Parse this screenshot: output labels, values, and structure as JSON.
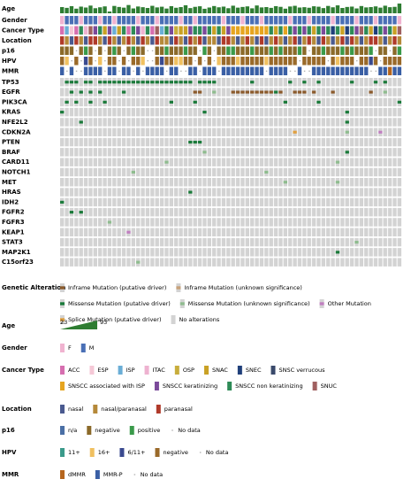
{
  "chart_data": {
    "type": "oncoprint",
    "age": {
      "label": "Age",
      "color": "#2e7d32",
      "range": [
        23,
        93
      ],
      "values": [
        62,
        55,
        70,
        48,
        66,
        58,
        75,
        52,
        60,
        68,
        23,
        72,
        63,
        57,
        80,
        50,
        67,
        61,
        54,
        73,
        59,
        65,
        49,
        70,
        56,
        62,
        78,
        53,
        64,
        69,
        47,
        58,
        71,
        60,
        66,
        52,
        74,
        57,
        63,
        68,
        51,
        76,
        59,
        62,
        55,
        70,
        64,
        48,
        67,
        73,
        58,
        61,
        56,
        69,
        65,
        53,
        72,
        60,
        77,
        54,
        63,
        66,
        50,
        71,
        59,
        62,
        68,
        57,
        74,
        61,
        64,
        93
      ]
    },
    "tracks": [
      {
        "label": "Gender",
        "codes": "FMMMFMMMFMMFMMMMFMMMFMMMMFMMFMMMMMFMMMFMMMFMMMMMFMMMFMMMMFMMMMFMMMFMMMMF",
        "categories": [
          {
            "code": "F",
            "name": "F",
            "color": "#f0b3d0"
          },
          {
            "code": "M",
            "name": "M",
            "color": "#4a6fb5"
          }
        ]
      },
      {
        "label": "Cancer Type",
        "codes": "0210a3b9a5925a0a93a0b2a94559aa9a5a5988888888a5a8a9a9a5a9a6a56a9ba56a9a5b",
        "categories": [
          {
            "code": "0",
            "name": "ACC",
            "color": "#d66fb0"
          },
          {
            "code": "1",
            "name": "ESP",
            "color": "#f5c8d6"
          },
          {
            "code": "2",
            "name": "ISP",
            "color": "#6aaed6"
          },
          {
            "code": "3",
            "name": "ITAC",
            "color": "#eeb2d0"
          },
          {
            "code": "4",
            "name": "OSP",
            "color": "#c8ad3c"
          },
          {
            "code": "5",
            "name": "SNAC",
            "color": "#c9a125"
          },
          {
            "code": "6",
            "name": "SNEC",
            "color": "#1f3f7a"
          },
          {
            "code": "7",
            "name": "SNSC verrucous",
            "color": "#3a4a6b"
          },
          {
            "code": "8",
            "name": "SNSCC associated with ISP",
            "color": "#e6a520"
          },
          {
            "code": "9",
            "name": "SNSCC keratinizing",
            "color": "#7b4a9a"
          },
          {
            "code": "a",
            "name": "SNSCC non keratinizing",
            "color": "#2e8b57"
          },
          {
            "code": "b",
            "name": "SNUC",
            "color": "#a06060"
          }
        ]
      },
      {
        "label": "Location",
        "codes": "210210221021012102102110210212011022101210201210120121021012021012210121",
        "categories": [
          {
            "code": "0",
            "name": "nasal",
            "color": "#4a5a8f"
          },
          {
            "code": "1",
            "name": "nasal/paranasal",
            "color": "#b5893a"
          },
          {
            "code": "2",
            "name": "paranasal",
            "color": "#b03a2a"
          }
        ]
      },
      {
        "label": "p16",
        "codes": "111-121-1-121-1211--112111211-21-1122111211121211121-1121112121112 11-121",
        "categories": [
          {
            "code": "0",
            "name": "n/a",
            "color": "#4a6fa5"
          },
          {
            "code": "1",
            "name": "negative",
            "color": "#8b6a2a"
          },
          {
            "code": "2",
            "name": "positive",
            "color": "#3a9a4a"
          },
          {
            "code": "-",
            "name": "No data",
            "color": "#999999"
          }
        ]
      },
      {
        "label": "HPV",
        "codes": "31-3-23-1-33-3-331--32331133-3-3-13331333331333333-33333-31333-3323-3333",
        "categories": [
          {
            "code": "0",
            "name": "11+",
            "color": "#3a9a8a"
          },
          {
            "code": "1",
            "name": "16+",
            "color": "#f0c060"
          },
          {
            "code": "2",
            "name": "6/11+",
            "color": "#3a4a8f"
          },
          {
            "code": "3",
            "name": "negative",
            "color": "#9a6a2a"
          },
          {
            "code": "-",
            "name": "No data",
            "color": "#999999"
          }
        ]
      },
      {
        "label": "MMR",
        "codes": "1-1--1111-11-11-1-1111-11--11-111-111111111-1111--1--111111111111--11011",
        "categories": [
          {
            "code": "0",
            "name": "dMMR",
            "color": "#b5651d"
          },
          {
            "code": "1",
            "name": "MMR-P",
            "color": "#3a5fa5"
          },
          {
            "code": "-",
            "name": "No data",
            "color": "#999999"
          }
        ]
      }
    ],
    "genes": [
      {
        "name": "TP53",
        "cells": ".mmm.mm.mmmmmmmmmmmmmmmmmmmm.mmmm.......m.......m..m..m......m....m.m..."
      },
      {
        "name": "EGFR",
        "cells": "..m.m.m.m....m..............ii..u...iiiiiiiiimi..iii.i...i.......i..u..."
      },
      {
        "name": "PIK3CA",
        "cells": ".m.m..m..m.............m....m..................m......m................m"
      },
      {
        "name": "KRAS",
        "cells": "m.............................m.............................m..........."
      },
      {
        "name": "NFE2L2",
        "cells": "....m.......................................................m..........."
      },
      {
        "name": "CDKN2A",
        "cells": ".................................................s..........u......o...."
      },
      {
        "name": "PTEN",
        "cells": "...........................mmm.........................................."
      },
      {
        "name": "BRAF",
        "cells": "..............................u.............................m..........."
      },
      {
        "name": "CARD11",
        "cells": "......................u...................................u.............."
      },
      {
        "name": "NOTCH1",
        "cells": "...............u...........................u............................"
      },
      {
        "name": "MET",
        "cells": "...............................................u..........u............."
      },
      {
        "name": "HRAS",
        "cells": "...........................m............................................"
      },
      {
        "name": "IDH2",
        "cells": "m......................................................................."
      },
      {
        "name": "FGFR2",
        "cells": "..m.m..................................................................."
      },
      {
        "name": "FGFR3",
        "cells": "..........u............................................................."
      },
      {
        "name": "KEAP1",
        "cells": "..............o........................................................."
      },
      {
        "name": "STAT3",
        "cells": "..............................................................u........."
      },
      {
        "name": "MAP2K1",
        "cells": "..........................................................m............."
      },
      {
        "name": "C15orf23",
        "cells": "................u......................................................."
      }
    ],
    "alteration_legend": {
      "title": "Genetic Alteration",
      "items": [
        {
          "code": "i",
          "name": "Inframe Mutation (putative driver)",
          "color": "#8b5a2b"
        },
        {
          "code": "j",
          "name": "Inframe Mutation (unknown significance)",
          "color": "#c8a27a"
        },
        {
          "code": "m",
          "name": "Missense Mutation (putative driver)",
          "color": "#1a7a3a"
        },
        {
          "code": "u",
          "name": "Missense Mutation (unknown significance)",
          "color": "#8fbc8f"
        },
        {
          "code": "o",
          "name": "Other Mutation",
          "color": "#c080c0"
        },
        {
          "code": "s",
          "name": "Splice Mutation (putative driver)",
          "color": "#e0a040"
        },
        {
          "code": ".",
          "name": "No alterations",
          "color": "#d3d3d3"
        }
      ]
    }
  }
}
